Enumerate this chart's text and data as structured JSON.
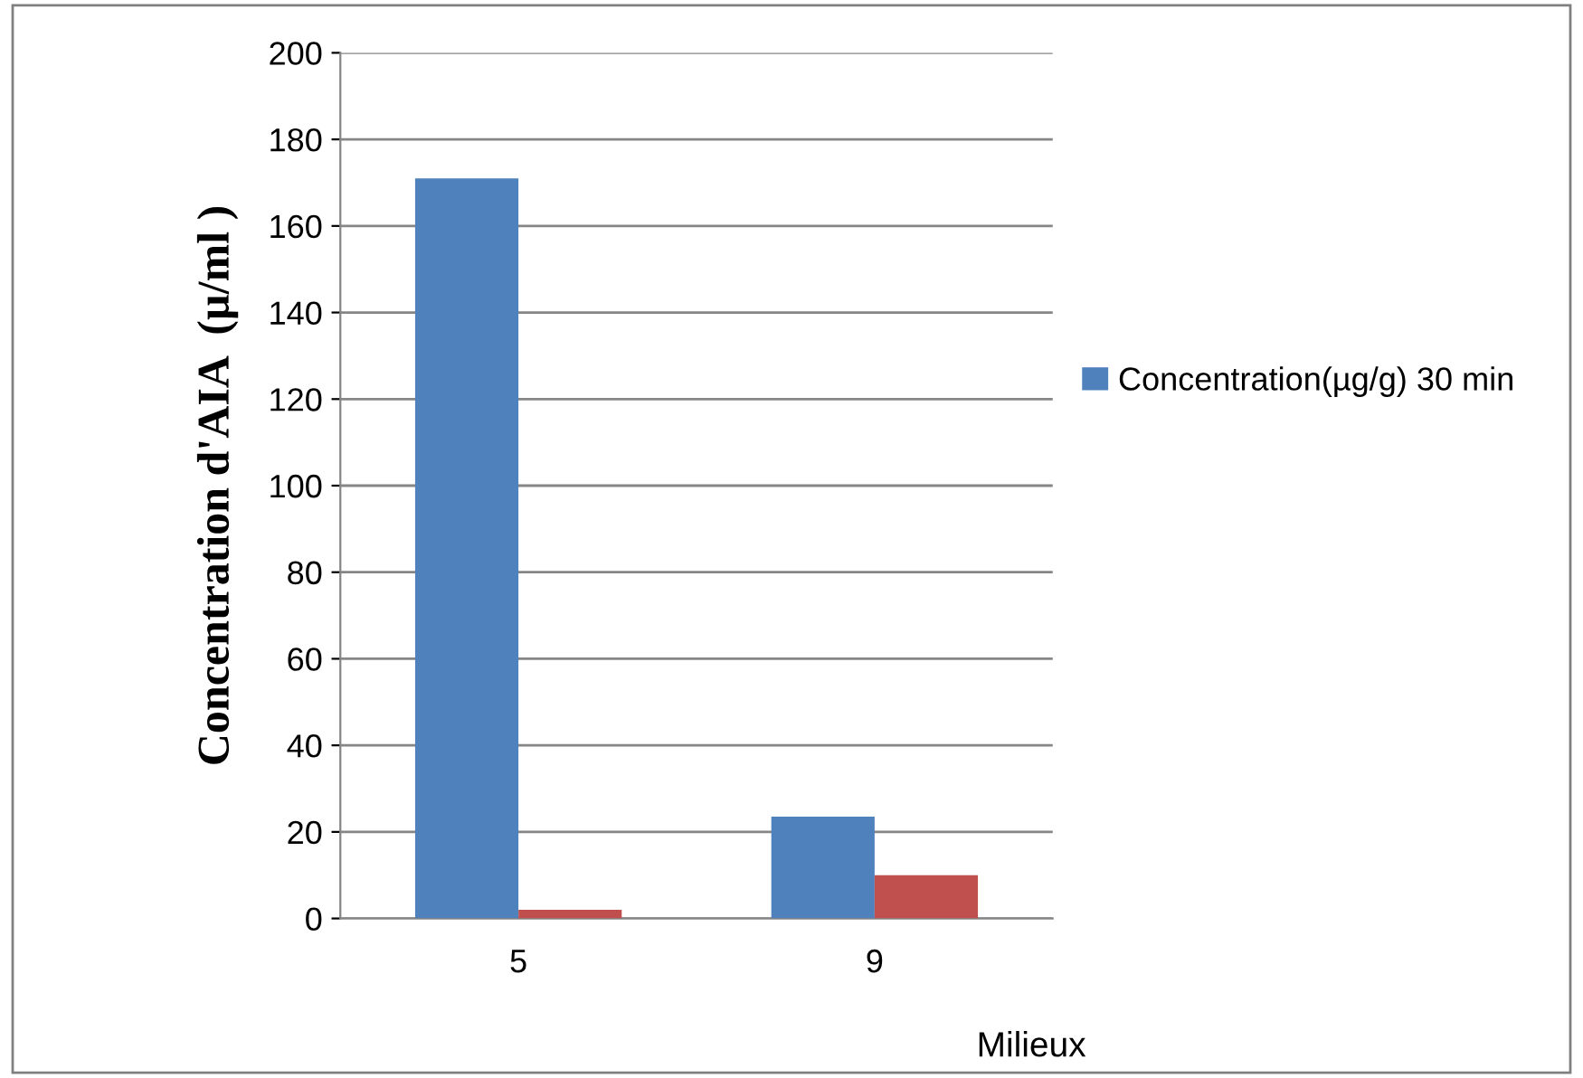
{
  "chart_data": {
    "type": "bar",
    "xlabel": "Milieux",
    "ylabel": "Concentration d'AIA  (µ/ml )",
    "categories": [
      "5",
      "9"
    ],
    "series": [
      {
        "name": "Concentration(µg/g) 30 min",
        "color": "#4f81bd",
        "values": [
          171,
          23.5
        ]
      },
      {
        "color": "#c0504d",
        "values": [
          2,
          10
        ]
      }
    ],
    "ylim": [
      0,
      200
    ],
    "yticks": [
      0,
      20,
      40,
      60,
      80,
      100,
      120,
      140,
      160,
      180,
      200
    ],
    "grid": "y",
    "legend": "right"
  }
}
